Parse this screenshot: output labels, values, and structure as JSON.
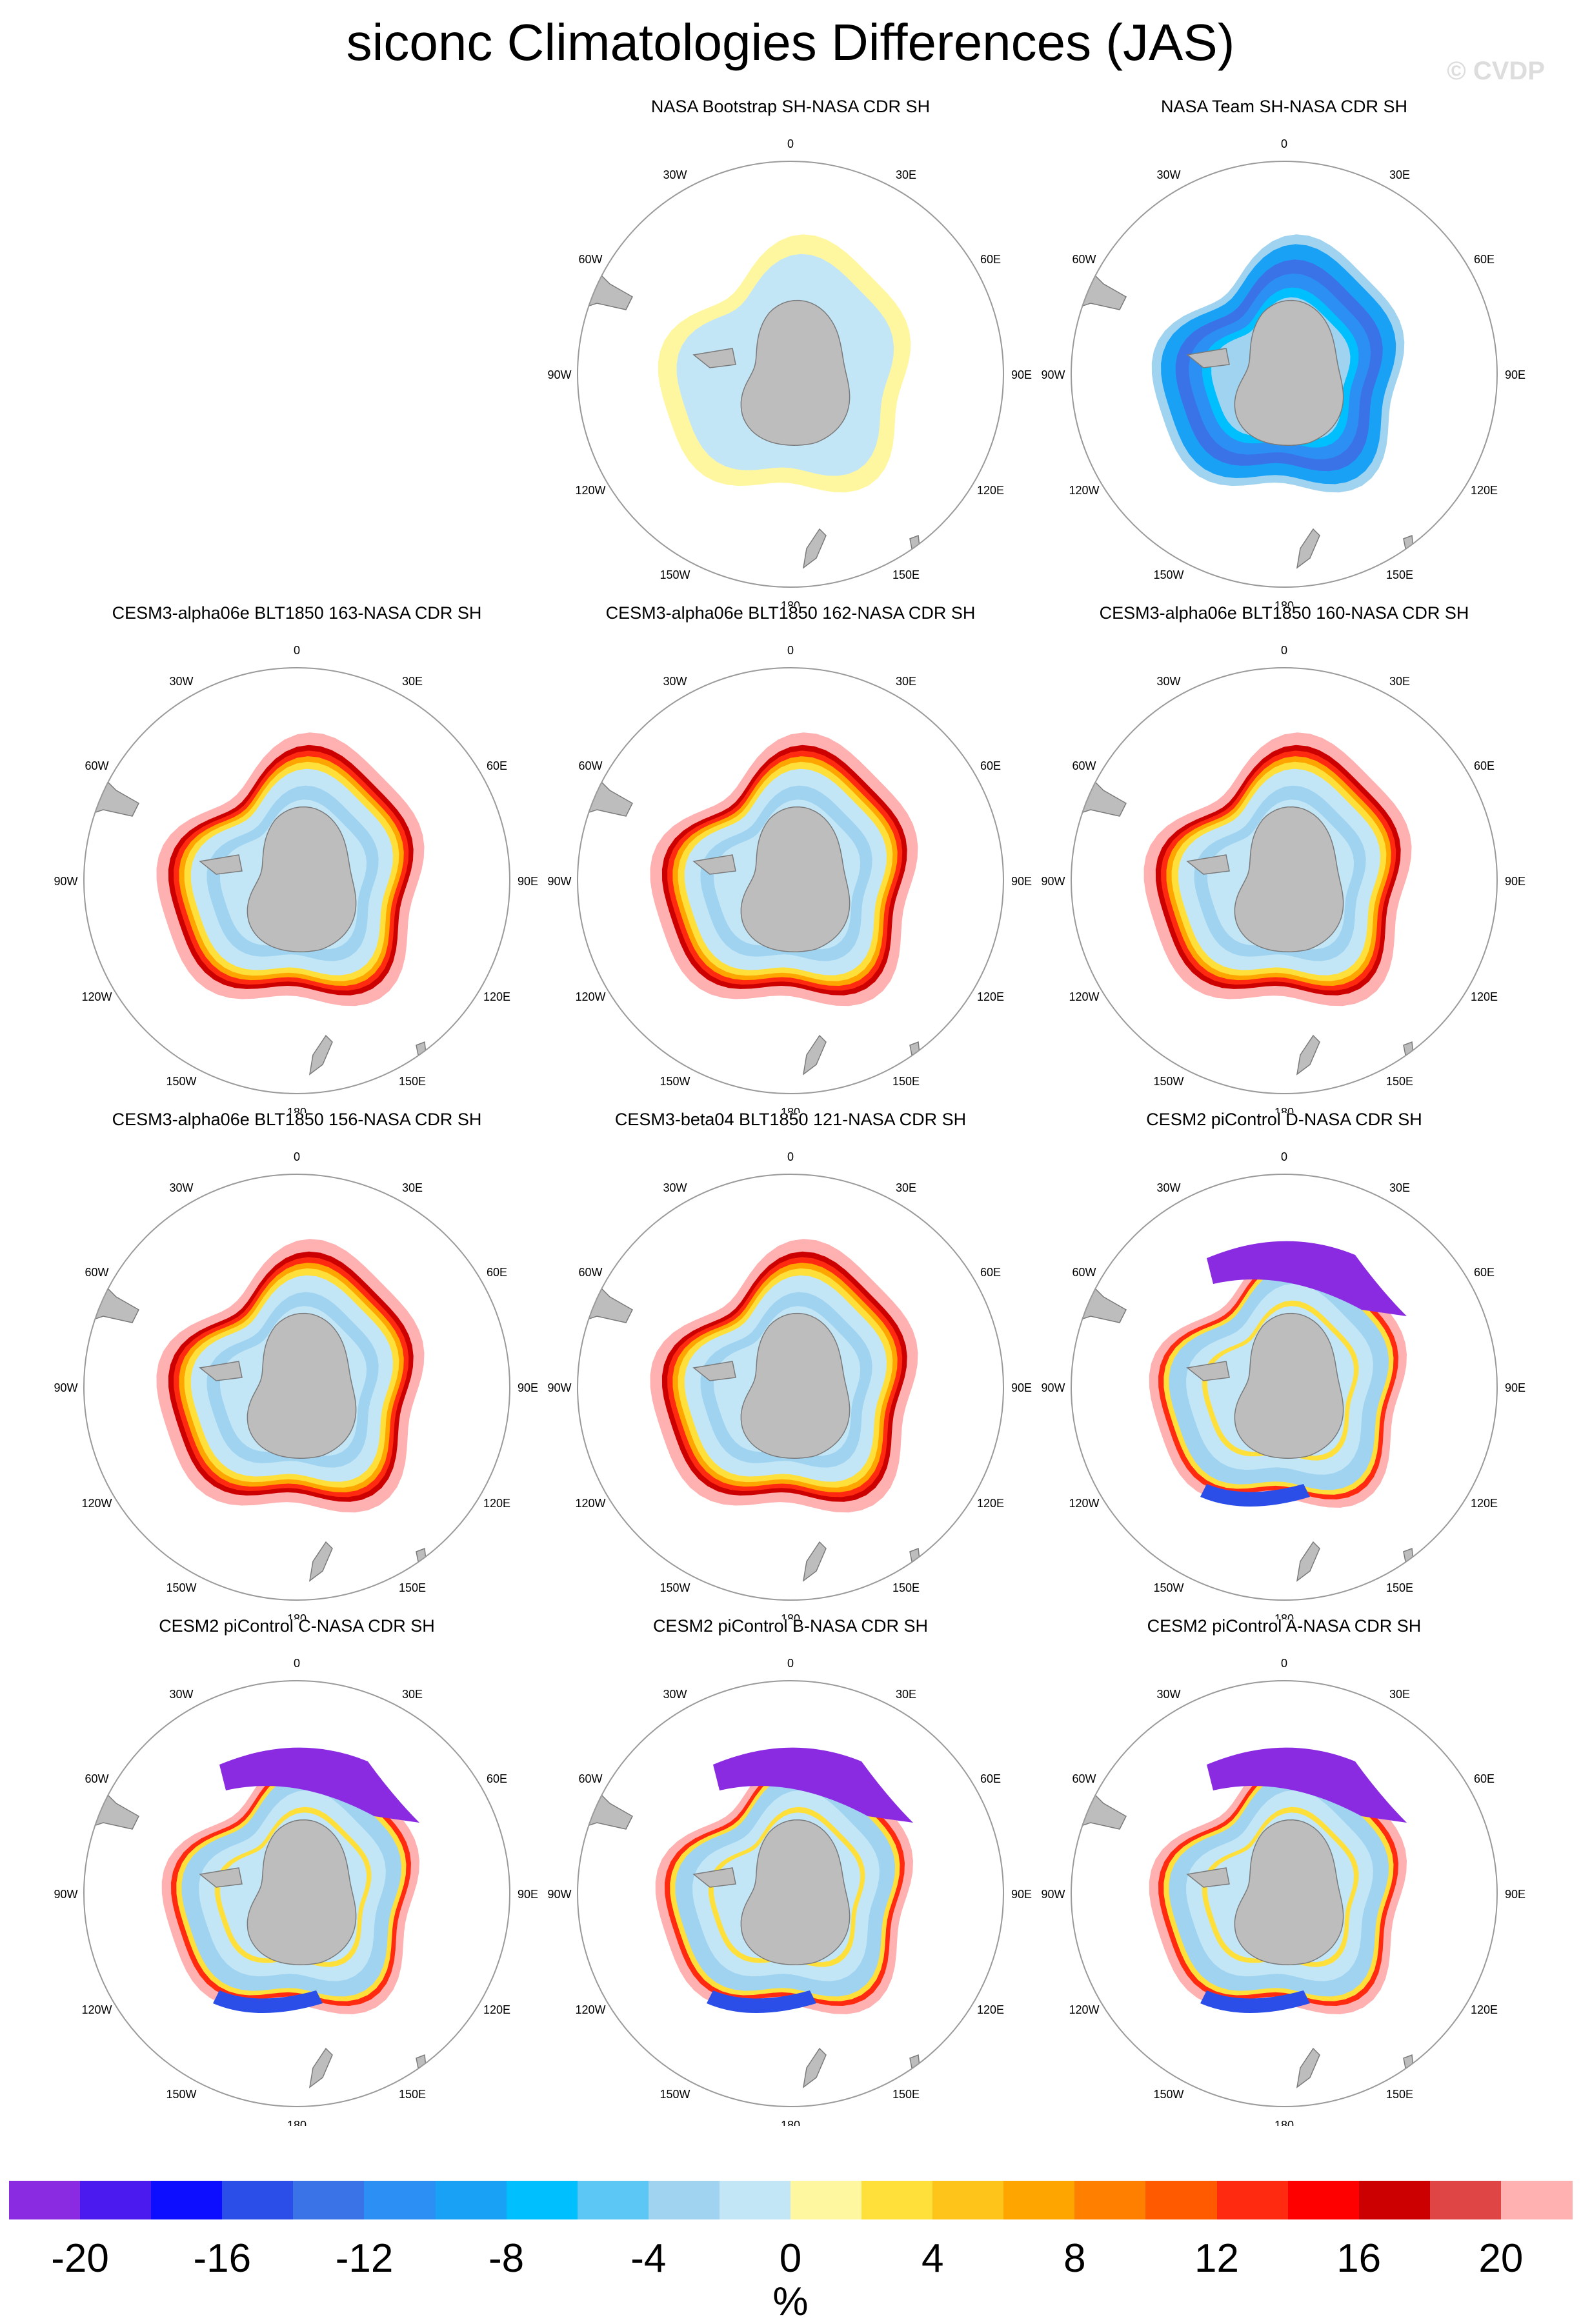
{
  "title": "siconc Climatologies Differences (JAS)",
  "copyright": "© CVDP",
  "map_labels": {
    "lon_0": "0",
    "lon_30e": "30E",
    "lon_60e": "60E",
    "lon_90e": "90E",
    "lon_120e": "120E",
    "lon_150e": "150E",
    "lon_180": "180",
    "lon_150w": "150W",
    "lon_120w": "120W",
    "lon_90w": "90W",
    "lon_60w": "60W",
    "lon_30w": "30W"
  },
  "colors": {
    "land": "#bdbdbd",
    "land_edge": "#7a7a7a",
    "circle": "#9a9a9a"
  },
  "chart_data": [
    {
      "type": "heatmap",
      "title": "NASA Bootstrap SH-NASA CDR SH",
      "pattern": "bootstrap"
    },
    {
      "type": "heatmap",
      "title": "NASA Team SH-NASA CDR SH",
      "pattern": "team"
    },
    {
      "type": "heatmap",
      "title": "CESM3-alpha06e BLT1850 163-NASA CDR SH",
      "pattern": "model_pos"
    },
    {
      "type": "heatmap",
      "title": "CESM3-alpha06e BLT1850 162-NASA CDR SH",
      "pattern": "model_pos"
    },
    {
      "type": "heatmap",
      "title": "CESM3-alpha06e BLT1850 160-NASA CDR SH",
      "pattern": "model_pos"
    },
    {
      "type": "heatmap",
      "title": "CESM3-alpha06e BLT1850 156-NASA CDR SH",
      "pattern": "model_pos"
    },
    {
      "type": "heatmap",
      "title": "CESM3-beta04 BLT1850 121-NASA CDR SH",
      "pattern": "model_pos"
    },
    {
      "type": "heatmap",
      "title": "CESM2 piControl D-NASA CDR SH",
      "pattern": "model_mixed"
    },
    {
      "type": "heatmap",
      "title": "CESM2 piControl C-NASA CDR SH",
      "pattern": "model_mixed"
    },
    {
      "type": "heatmap",
      "title": "CESM2 piControl B-NASA CDR SH",
      "pattern": "model_mixed"
    },
    {
      "type": "heatmap",
      "title": "CESM2 piControl A-NASA CDR SH",
      "pattern": "model_mixed"
    }
  ],
  "colorbar": {
    "units": "%",
    "min": -22,
    "max": 22,
    "levels": [
      -22,
      -20,
      -18,
      -16,
      -14,
      -12,
      -10,
      -8,
      -6,
      -4,
      -2,
      0,
      2,
      4,
      6,
      8,
      10,
      12,
      14,
      16,
      18,
      20,
      22
    ],
    "colors": [
      "#8a2be2",
      "#4b1aef",
      "#0d0dff",
      "#2b4ee8",
      "#3a73e8",
      "#2b8ff3",
      "#19a2f5",
      "#00bfff",
      "#5cc6f5",
      "#9fd3f0",
      "#c3e6f7",
      "#fff7a0",
      "#ffdf3a",
      "#ffc41a",
      "#ffa500",
      "#ff8000",
      "#ff5a00",
      "#ff2a10",
      "#ff0000",
      "#cc0000",
      "#e04545",
      "#ffb0b0"
    ],
    "tick_labels": [
      "-20",
      "-16",
      "-12",
      "-8",
      "-4",
      "0",
      "4",
      "8",
      "12",
      "16",
      "20"
    ],
    "tick_values": [
      -20,
      -16,
      -12,
      -8,
      -4,
      0,
      4,
      8,
      12,
      16,
      20
    ]
  }
}
